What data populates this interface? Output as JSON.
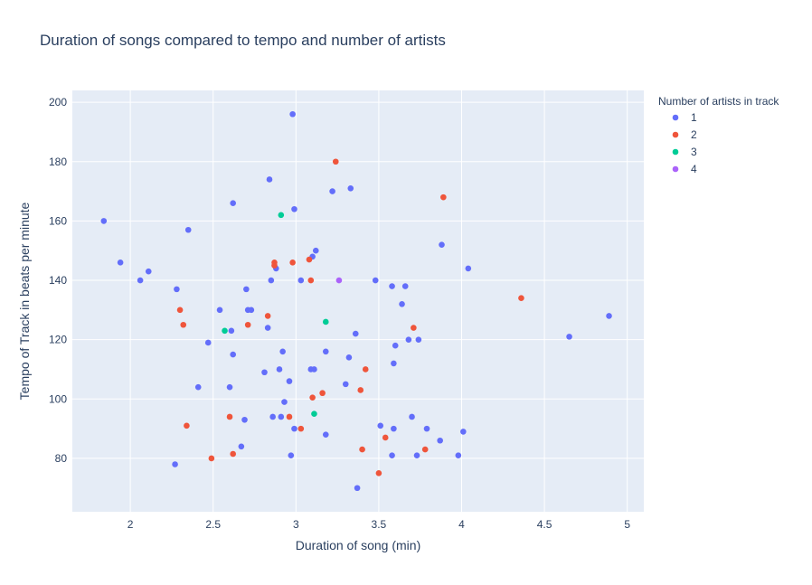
{
  "chart_data": {
    "type": "scatter",
    "title": "Duration of songs compared to tempo and number of artists",
    "xlabel": "Duration of song (min)",
    "ylabel": "Tempo of Track in beats per minute",
    "xlim": [
      1.65,
      5.1
    ],
    "ylim": [
      62,
      204
    ],
    "xticks": [
      2,
      2.5,
      3,
      3.5,
      4,
      4.5,
      5
    ],
    "yticks": [
      80,
      100,
      120,
      140,
      160,
      180,
      200
    ],
    "grid": true,
    "legend": {
      "title": "Number of artists in track",
      "placement": "right"
    },
    "series": [
      {
        "name": "1",
        "color": "#636efa",
        "points": [
          [
            1.84,
            160
          ],
          [
            1.94,
            146
          ],
          [
            2.06,
            140
          ],
          [
            2.11,
            143
          ],
          [
            2.28,
            137
          ],
          [
            2.27,
            78
          ],
          [
            2.35,
            157
          ],
          [
            2.41,
            104
          ],
          [
            2.47,
            119
          ],
          [
            2.54,
            130
          ],
          [
            2.6,
            104
          ],
          [
            2.61,
            123
          ],
          [
            2.62,
            115
          ],
          [
            2.62,
            166
          ],
          [
            2.67,
            84
          ],
          [
            2.69,
            93
          ],
          [
            2.7,
            137
          ],
          [
            2.71,
            130
          ],
          [
            2.73,
            130
          ],
          [
            2.81,
            109
          ],
          [
            2.83,
            124
          ],
          [
            2.84,
            174
          ],
          [
            2.85,
            140
          ],
          [
            2.86,
            94
          ],
          [
            2.88,
            144
          ],
          [
            2.9,
            110
          ],
          [
            2.91,
            94
          ],
          [
            2.92,
            116
          ],
          [
            2.93,
            99
          ],
          [
            2.96,
            106
          ],
          [
            2.97,
            81
          ],
          [
            2.98,
            196
          ],
          [
            2.99,
            164
          ],
          [
            2.99,
            90
          ],
          [
            3.03,
            140
          ],
          [
            3.09,
            110
          ],
          [
            3.1,
            148
          ],
          [
            3.11,
            110
          ],
          [
            3.12,
            150
          ],
          [
            3.18,
            88
          ],
          [
            3.18,
            116
          ],
          [
            3.22,
            170
          ],
          [
            3.3,
            105
          ],
          [
            3.32,
            114
          ],
          [
            3.33,
            171
          ],
          [
            3.36,
            122
          ],
          [
            3.37,
            70
          ],
          [
            3.48,
            140
          ],
          [
            3.51,
            91
          ],
          [
            3.58,
            138
          ],
          [
            3.58,
            81
          ],
          [
            3.59,
            112
          ],
          [
            3.59,
            90
          ],
          [
            3.6,
            118
          ],
          [
            3.64,
            132
          ],
          [
            3.66,
            138
          ],
          [
            3.68,
            120
          ],
          [
            3.7,
            94
          ],
          [
            3.73,
            81
          ],
          [
            3.74,
            120
          ],
          [
            3.79,
            90
          ],
          [
            3.87,
            86
          ],
          [
            3.88,
            152
          ],
          [
            3.98,
            81
          ],
          [
            4.01,
            89
          ],
          [
            4.04,
            144
          ],
          [
            4.65,
            121
          ],
          [
            4.89,
            128
          ]
        ]
      },
      {
        "name": "2",
        "color": "#ef553b",
        "points": [
          [
            2.3,
            130
          ],
          [
            2.32,
            125
          ],
          [
            2.34,
            91
          ],
          [
            2.49,
            80
          ],
          [
            2.6,
            94
          ],
          [
            2.62,
            81.5
          ],
          [
            2.71,
            125
          ],
          [
            2.83,
            128
          ],
          [
            2.87,
            146
          ],
          [
            2.87,
            145
          ],
          [
            2.96,
            94
          ],
          [
            2.98,
            146
          ],
          [
            3.03,
            90
          ],
          [
            3.08,
            147
          ],
          [
            3.09,
            140
          ],
          [
            3.1,
            100.5
          ],
          [
            3.16,
            102
          ],
          [
            3.24,
            180
          ],
          [
            3.39,
            103
          ],
          [
            3.4,
            83
          ],
          [
            3.42,
            110
          ],
          [
            3.5,
            75
          ],
          [
            3.54,
            87
          ],
          [
            3.71,
            124
          ],
          [
            3.78,
            83
          ],
          [
            3.89,
            168
          ],
          [
            4.36,
            134
          ]
        ]
      },
      {
        "name": "3",
        "color": "#00cc96",
        "points": [
          [
            2.57,
            123
          ],
          [
            2.91,
            162
          ],
          [
            3.11,
            95
          ],
          [
            3.18,
            126
          ]
        ]
      },
      {
        "name": "4",
        "color": "#ab63fa",
        "points": [
          [
            3.26,
            140
          ]
        ]
      }
    ]
  }
}
